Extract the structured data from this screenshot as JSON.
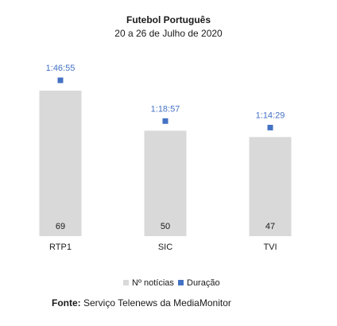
{
  "colors": {
    "bar": "#d9d9d9",
    "marker": "#4472c4",
    "duration_label": "#4472c4"
  },
  "chart_data": {
    "type": "bar",
    "title": "Futebol Português",
    "subtitle": "20 a 26 de Julho de 2020",
    "categories": [
      "RTP1",
      "SIC",
      "TVI"
    ],
    "series": [
      {
        "name": "Nº notícias",
        "type": "bar",
        "values": [
          69,
          50,
          47
        ]
      },
      {
        "name": "Duração",
        "type": "scatter",
        "values_seconds": [
          6415,
          4737,
          4469
        ],
        "labels": [
          "1:46:55",
          "1:18:57",
          "1:14:29"
        ]
      }
    ],
    "grid": false,
    "legend_position": "bottom"
  },
  "source": {
    "label": "Fonte:",
    "text": " Serviço Telenews da MediaMonitor"
  }
}
